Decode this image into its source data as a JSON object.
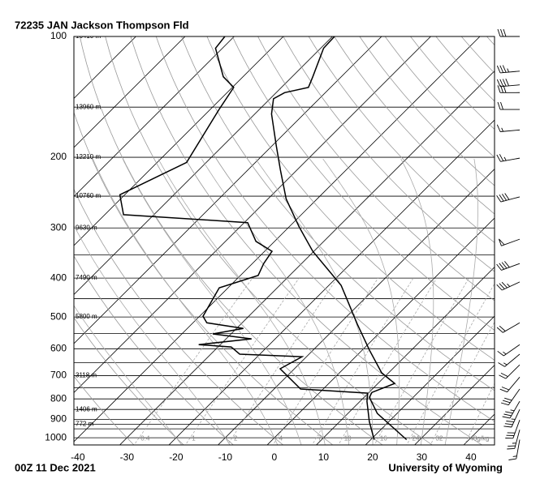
{
  "chart_data": {
    "type": "skewt",
    "title": "72235 JAN Jackson Thompson Fld",
    "footer_left": "00Z 11 Dec 2021",
    "footer_right": "University of Wyoming",
    "ylim": [
      1042,
      100
    ],
    "log_y": true,
    "yticks": [
      100,
      200,
      300,
      400,
      500,
      600,
      700,
      800,
      900,
      1000
    ],
    "xlim": [
      -40.8,
      44.8
    ],
    "xticks": [
      -40,
      -30,
      -20,
      -10,
      0,
      10,
      20,
      30,
      40
    ],
    "isobars": [
      100,
      150,
      200,
      250,
      300,
      350,
      400,
      450,
      500,
      550,
      600,
      650,
      700,
      750,
      800,
      850,
      900,
      925,
      950,
      1000
    ],
    "isotherms": [
      -110,
      -100,
      -90,
      -80,
      -70,
      -60,
      -50,
      -40,
      -30,
      -20,
      -10,
      0,
      10,
      20,
      30,
      40
    ],
    "dry_adiabats": [
      -30,
      -20,
      -10,
      0,
      10,
      20,
      30,
      40,
      50,
      60,
      70,
      80,
      90,
      100,
      110,
      120,
      130,
      140,
      150,
      160,
      170,
      180
    ],
    "moist_adiabats": [
      -20,
      -10,
      0,
      5,
      10,
      15,
      20,
      25,
      30,
      35
    ],
    "mixing_ratios": [
      0.4,
      1,
      2,
      4,
      7,
      10,
      16,
      24,
      32,
      {
        "value": 48,
        "label": "48g/kg"
      }
    ],
    "height_labels": {
      "pressure": [
        100,
        150,
        200,
        250,
        300,
        400,
        500,
        700,
        850,
        925
      ],
      "labels": [
        "16410 m",
        "13960 m",
        "12210 m",
        "10760 m",
        "9630 m",
        "7490 m",
        "5800 m",
        "3118 m",
        "1406 m",
        "772 m"
      ]
    },
    "series": [
      {
        "color": "#000000",
        "pressure": [
          1011,
          870,
          793,
          771,
          732,
          689,
          605,
          521,
          417,
          343,
          298,
          254,
          215,
          187,
          156,
          143,
          138,
          134,
          126,
          107,
          100
        ],
        "values": [
          27.3,
          16.0,
          11.1,
          10.6,
          13.4,
          8.6,
          1.5,
          -6.3,
          -17.5,
          -30.2,
          -38.0,
          -46.3,
          -53.4,
          -59.2,
          -66.6,
          -69.3,
          -68.3,
          -64.5,
          -65.8,
          -69.4,
          -69.6
        ]
      },
      {
        "color": "#000000",
        "pressure": [
          1011,
          911,
          811,
          774,
          756,
          673,
          628,
          619,
          594,
          586,
          567,
          551,
          534,
          517,
          498,
          423,
          394,
          368,
          343,
          324,
          291,
          278,
          248,
          206,
          152,
          134,
          126,
          107,
          100
        ],
        "values": [
          20.7,
          16.0,
          11.4,
          9.9,
          -4.6,
          -12.9,
          -10.9,
          -24.1,
          -27.3,
          -34.4,
          -24.8,
          -33.7,
          -28.6,
          -37.2,
          -39.3,
          -41.8,
          -36.4,
          -37.7,
          -38.5,
          -43.8,
          -49.3,
          -76.2,
          -81.0,
          -74.0,
          -78.2,
          -79.7,
          -84.0,
          -91.4,
          -91.9
        ]
      }
    ],
    "winds": {
      "pressure": [
        100,
        122,
        132,
        138,
        152,
        171,
        201,
        251,
        320,
        368,
        409,
        517,
        586,
        619,
        658,
        706,
        756,
        811,
        850,
        903,
        955,
        1011
      ],
      "direction": [
        270,
        265,
        265,
        270,
        270,
        265,
        260,
        255,
        250,
        250,
        245,
        240,
        235,
        230,
        225,
        220,
        215,
        210,
        205,
        200,
        195,
        190
      ],
      "speed": [
        30,
        35,
        40,
        30,
        20,
        15,
        25,
        40,
        50,
        40,
        35,
        20,
        15,
        15,
        20,
        20,
        30,
        35,
        35,
        30,
        25,
        15
      ]
    }
  }
}
